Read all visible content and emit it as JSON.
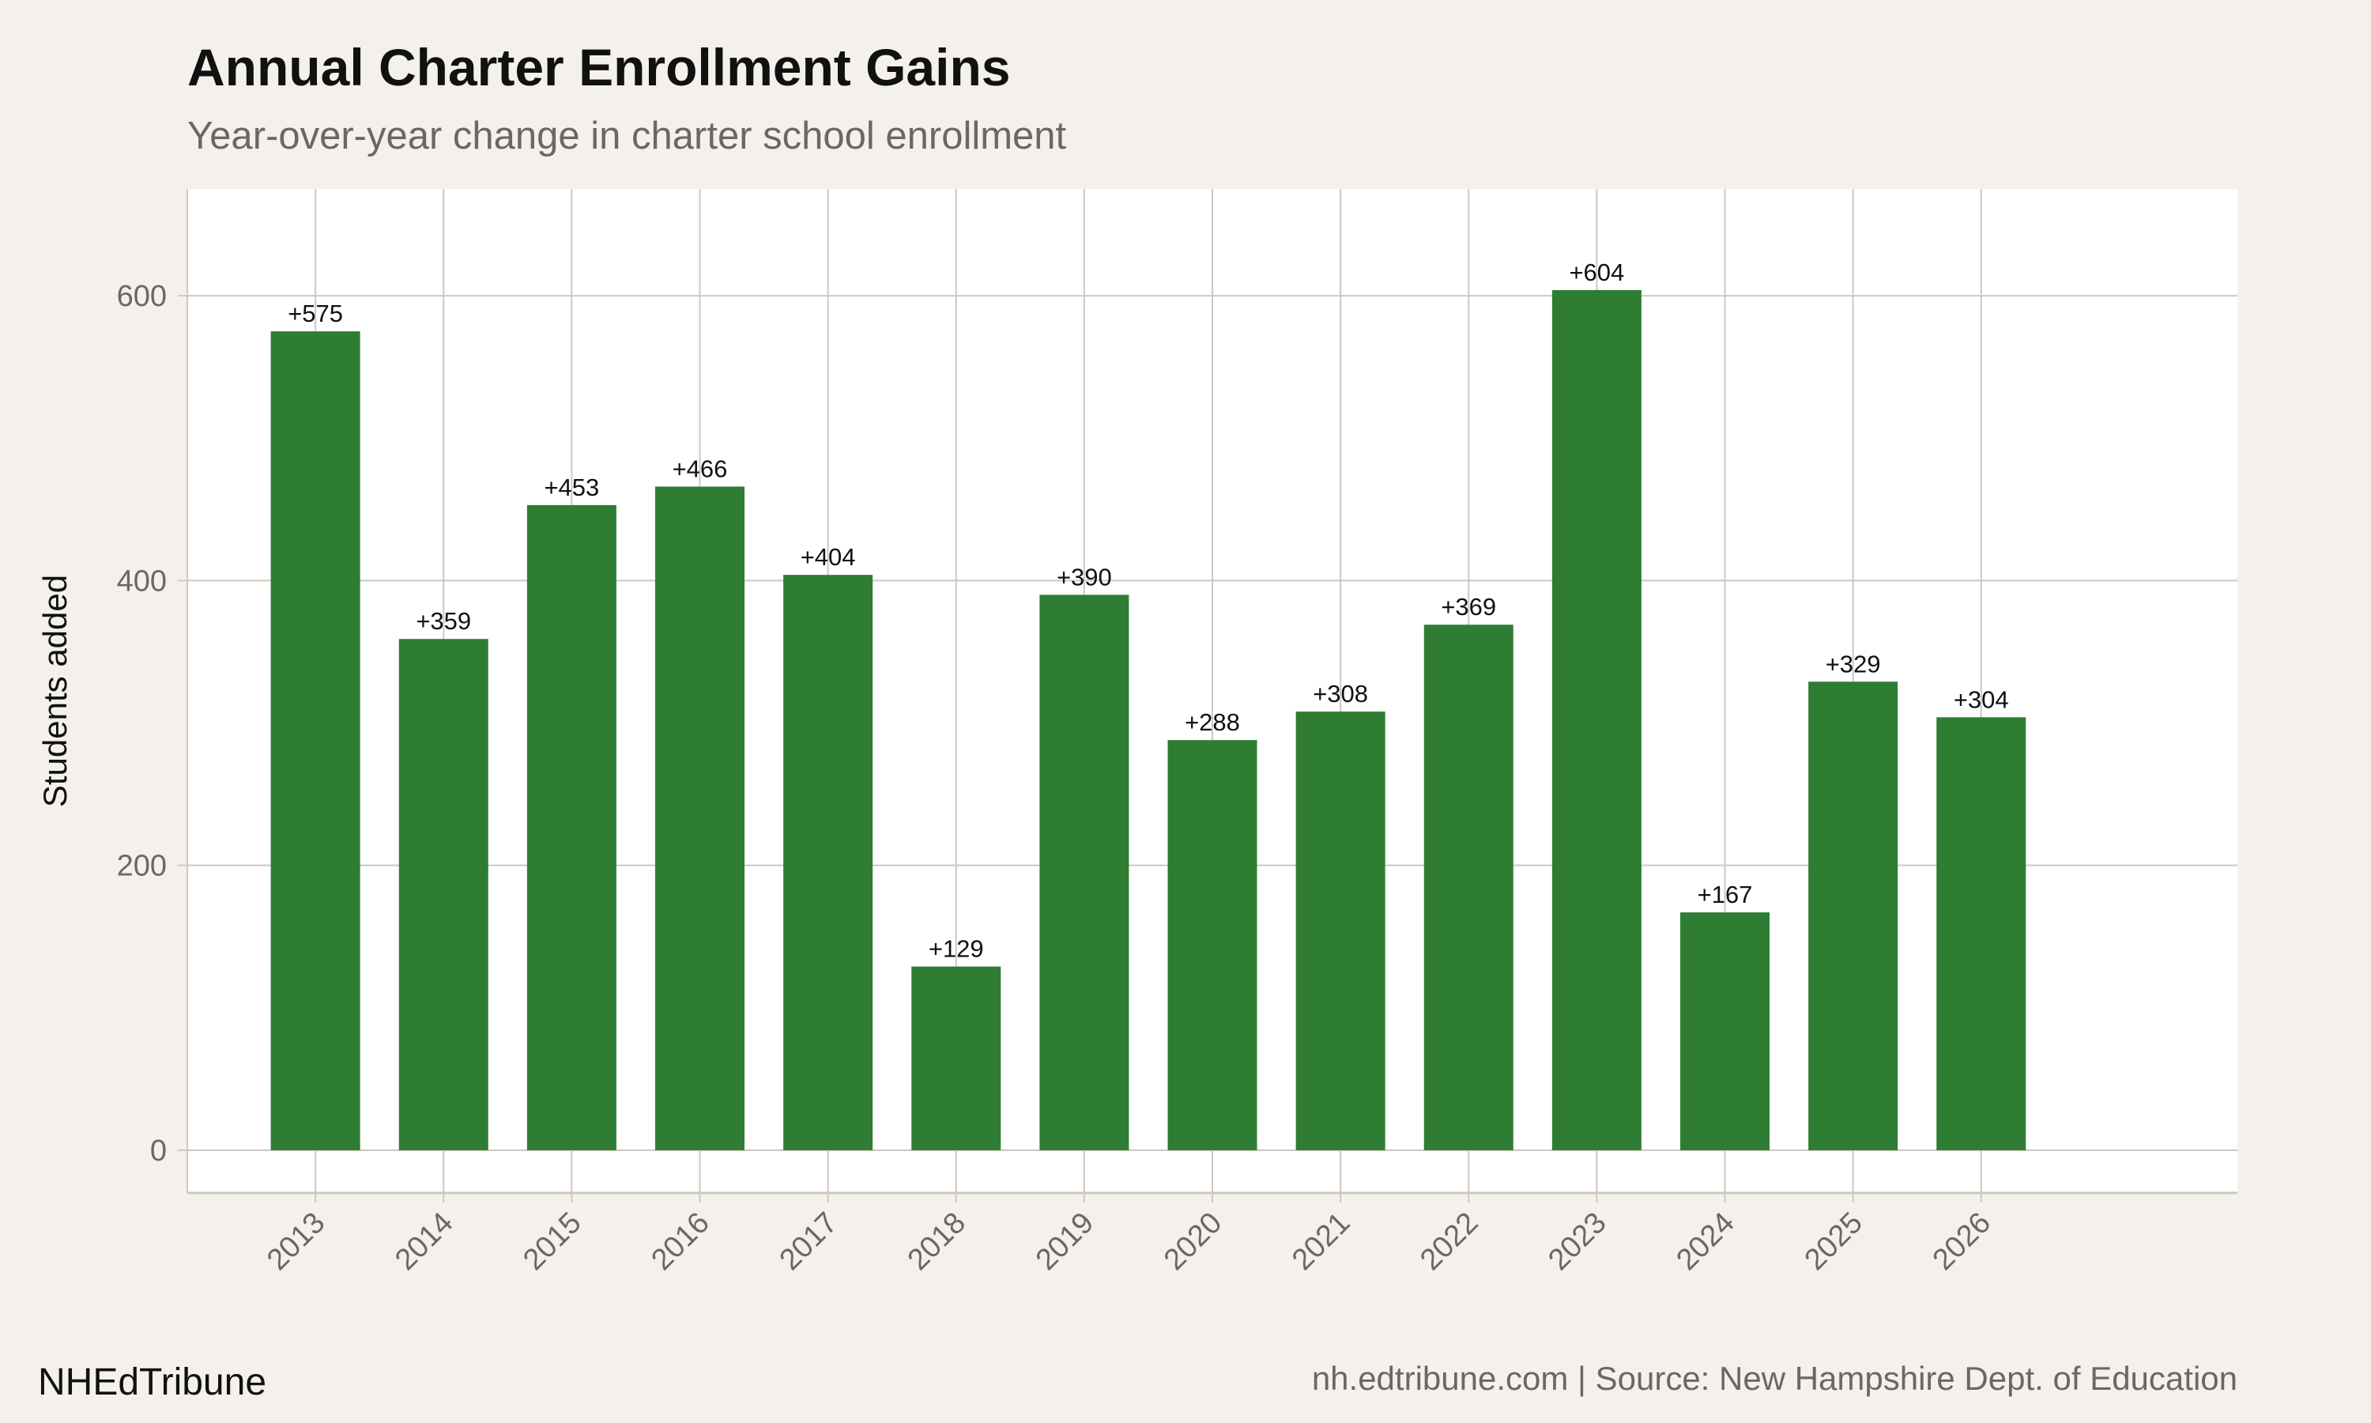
{
  "chart_data": {
    "type": "bar",
    "title": "Annual Charter Enrollment Gains",
    "subtitle": "Year-over-year change in charter school enrollment",
    "xlabel": "",
    "ylabel": "Students added",
    "categories": [
      "2013",
      "2014",
      "2015",
      "2016",
      "2017",
      "2018",
      "2019",
      "2020",
      "2021",
      "2022",
      "2023",
      "2024",
      "2025",
      "2026"
    ],
    "values": [
      575,
      359,
      453,
      466,
      404,
      129,
      390,
      288,
      308,
      369,
      604,
      167,
      329,
      304
    ],
    "data_labels": [
      "+575",
      "+359",
      "+453",
      "+466",
      "+404",
      "+129",
      "+390",
      "+288",
      "+308",
      "+369",
      "+604",
      "+167",
      "+329",
      "+304"
    ],
    "ylim": [
      -30,
      675
    ],
    "xlim": [
      2012,
      2028
    ],
    "yticks": [
      "0",
      "200",
      "400",
      "600"
    ],
    "grid": true,
    "colors": {
      "bar": "#2e7d32",
      "panel": "#ffffff",
      "background": "#f4f1ec",
      "grid": "#cdc8c0"
    }
  },
  "footer": {
    "brand": "NHEdTribune",
    "source": "nh.edtribune.com | Source: New Hampshire Dept. of Education"
  }
}
